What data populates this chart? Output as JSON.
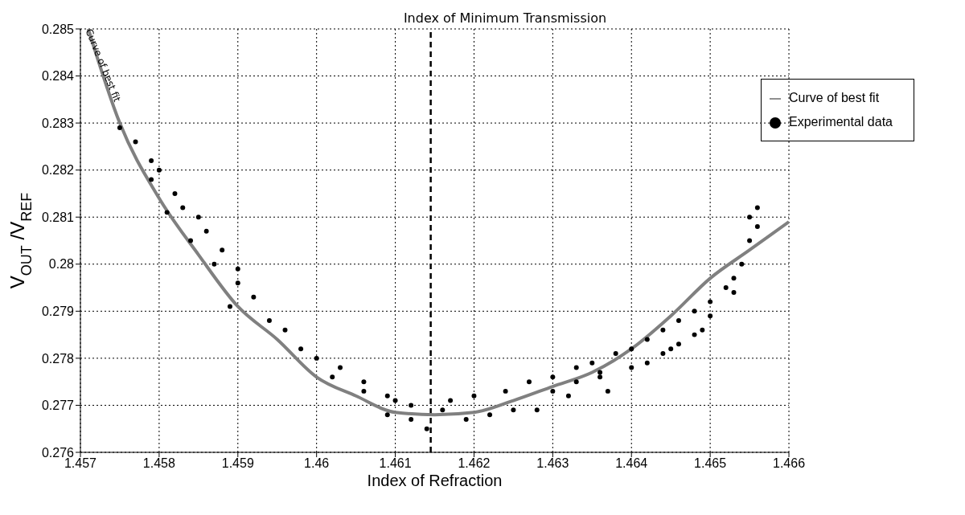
{
  "chart_data": {
    "type": "scatter",
    "title": "Index of Minimum Transmission",
    "xlabel": "Index of Refraction",
    "ylabel": "V$_{OUT}$/V$_{REF}$",
    "xlim": [
      1.457,
      1.466
    ],
    "xticks": [
      1.457,
      1.458,
      1.459,
      1.46,
      1.461,
      1.462,
      1.463,
      1.464,
      1.465,
      1.466
    ],
    "ylim": [
      0.276,
      0.285
    ],
    "yticks": [
      0.276,
      0.277,
      0.278,
      0.279,
      0.28,
      0.281,
      0.282,
      0.283,
      0.284,
      0.285
    ],
    "grid": true,
    "legend": "top right",
    "series": [
      {
        "name": "Curve of best fit",
        "type": "line",
        "color": "#808080",
        "marker": "none",
        "line_style": "solid",
        "x": [
          1.4571,
          1.4575,
          1.458,
          1.4585,
          1.459,
          1.4595,
          1.46,
          1.4605,
          1.461,
          1.4615,
          1.462,
          1.4625,
          1.463,
          1.4635,
          1.464,
          1.4645,
          1.465,
          1.4655,
          1.466
        ],
        "values": [
          0.285,
          0.283,
          0.2814,
          0.2802,
          0.2791,
          0.2784,
          0.2776,
          0.2772,
          0.27685,
          0.2768,
          0.27685,
          0.2771,
          0.2774,
          0.2777,
          0.2782,
          0.2789,
          0.2797,
          0.2803,
          0.2809
        ]
      },
      {
        "name": "Experimental data",
        "color": "#000000",
        "marker": "circle",
        "x": [
          1.4575,
          1.4577,
          1.4579,
          1.458,
          1.4579,
          1.4582,
          1.4583,
          1.4581,
          1.4585,
          1.4586,
          1.4584,
          1.4588,
          1.4587,
          1.459,
          1.459,
          1.4592,
          1.4589,
          1.4594,
          1.4596,
          1.4598,
          1.46,
          1.4603,
          1.4602,
          1.4606,
          1.4606,
          1.4609,
          1.461,
          1.4609,
          1.4612,
          1.4612,
          1.4614,
          1.4616,
          1.4617,
          1.4619,
          1.462,
          1.4622,
          1.4624,
          1.4625,
          1.4627,
          1.4628,
          1.463,
          1.463,
          1.4632,
          1.4633,
          1.4635,
          1.4636,
          1.4637,
          1.4638,
          1.464,
          1.464,
          1.4642,
          1.4642,
          1.4644,
          1.4644,
          1.4646,
          1.4646,
          1.4648,
          1.4649,
          1.465,
          1.465,
          1.4652,
          1.4653,
          1.4653,
          1.4654,
          1.4655,
          1.4655,
          1.4656,
          1.4656,
          1.4633,
          1.4636,
          1.4645,
          1.4648
        ],
        "values": [
          0.2829,
          0.2826,
          0.2822,
          0.282,
          0.2818,
          0.2815,
          0.2812,
          0.2811,
          0.281,
          0.2807,
          0.2805,
          0.2803,
          0.28,
          0.2799,
          0.2796,
          0.2793,
          0.2791,
          0.2788,
          0.2786,
          0.2782,
          0.278,
          0.2778,
          0.2776,
          0.2775,
          0.2773,
          0.2772,
          0.2771,
          0.2768,
          0.277,
          0.2767,
          0.2765,
          0.2769,
          0.2771,
          0.2767,
          0.2772,
          0.2768,
          0.2773,
          0.2769,
          0.2775,
          0.2769,
          0.2776,
          0.2773,
          0.2772,
          0.2778,
          0.2779,
          0.2776,
          0.2773,
          0.2781,
          0.2782,
          0.2778,
          0.2784,
          0.2779,
          0.2786,
          0.2781,
          0.2788,
          0.2783,
          0.279,
          0.2786,
          0.2792,
          0.2789,
          0.2795,
          0.2797,
          0.2794,
          0.28,
          0.2805,
          0.281,
          0.2812,
          0.2808,
          0.2775,
          0.2777,
          0.2782,
          0.2785
        ]
      }
    ],
    "ref_lines": [
      {
        "axis": "x",
        "value": 1.46145,
        "color": "#000000",
        "line_style": "dashed"
      }
    ],
    "annotations": [
      {
        "text": "Curve of best fit",
        "x": 1.45725,
        "y": 0.2842
      }
    ]
  }
}
